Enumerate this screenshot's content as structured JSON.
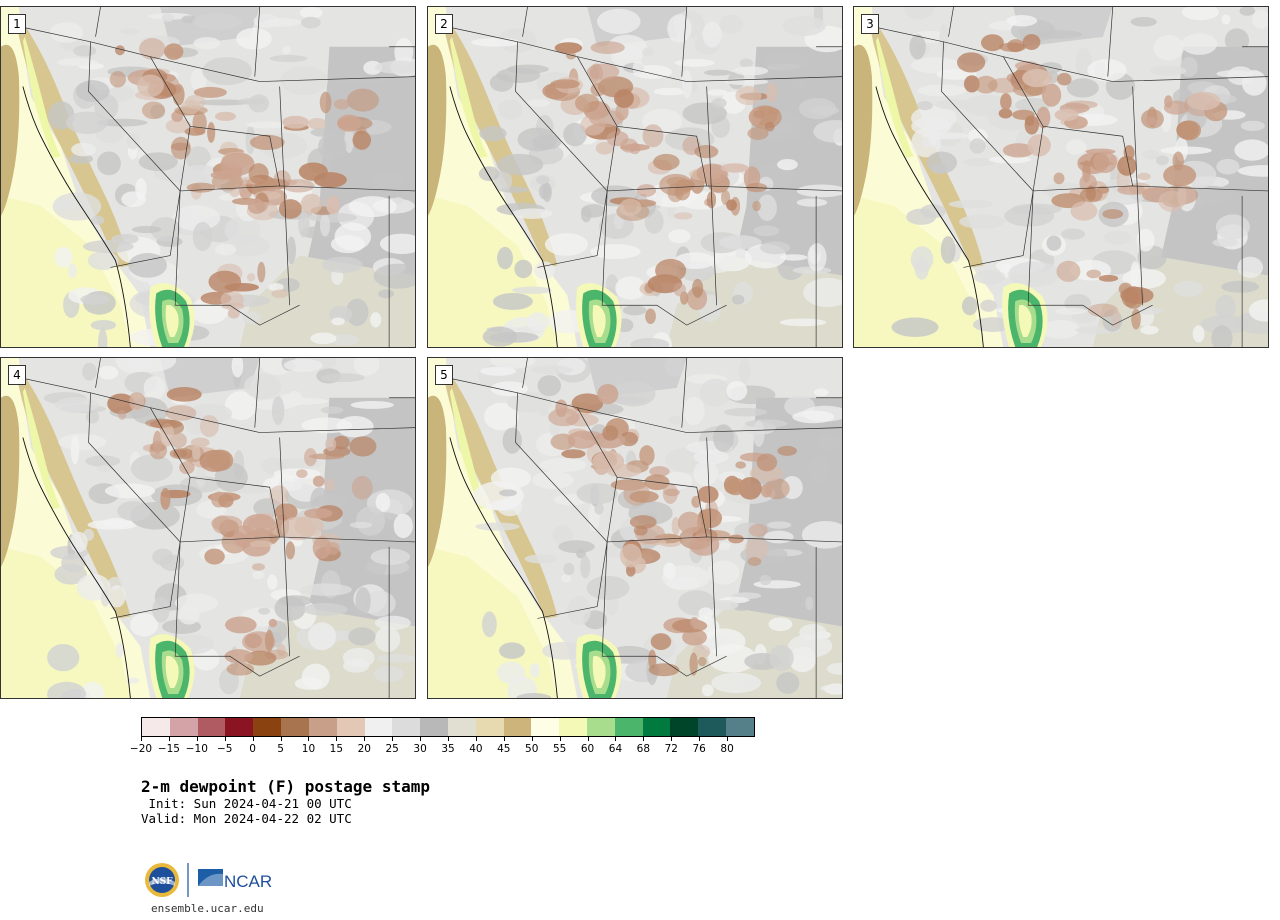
{
  "panels": [
    {
      "label": "1"
    },
    {
      "label": "2"
    },
    {
      "label": "3"
    },
    {
      "label": "4"
    },
    {
      "label": "5"
    }
  ],
  "colorbar": {
    "colors": [
      "#f5e9ea",
      "#d4a3a7",
      "#b05b61",
      "#8a1421",
      "#8a4210",
      "#a87450",
      "#c8a08a",
      "#e3c8b6",
      "#f0f0f0",
      "#dcdcdc",
      "#b8b8b8",
      "#e0dfd2",
      "#e8dab0",
      "#ccb47a",
      "#fefee6",
      "#f5f9b8",
      "#a8dd8e",
      "#4cb56c",
      "#007a3e",
      "#00452a",
      "#1e5a5c",
      "#55808a"
    ],
    "ticks": [
      "−20",
      "−15",
      "−10",
      "−5",
      "0",
      "5",
      "10",
      "15",
      "20",
      "25",
      "30",
      "35",
      "40",
      "45",
      "50",
      "55",
      "60",
      "64",
      "68",
      "72",
      "76",
      "80"
    ]
  },
  "title": "2-m dewpoint (F) postage stamp",
  "init": " Init: Sun 2024-04-21 00 UTC",
  "valid": "Valid: Mon 2024-04-22 02 UTC",
  "logos": {
    "nsf": "NSF",
    "ncar": "NCAR"
  },
  "credit": "ensemble.ucar.edu"
}
